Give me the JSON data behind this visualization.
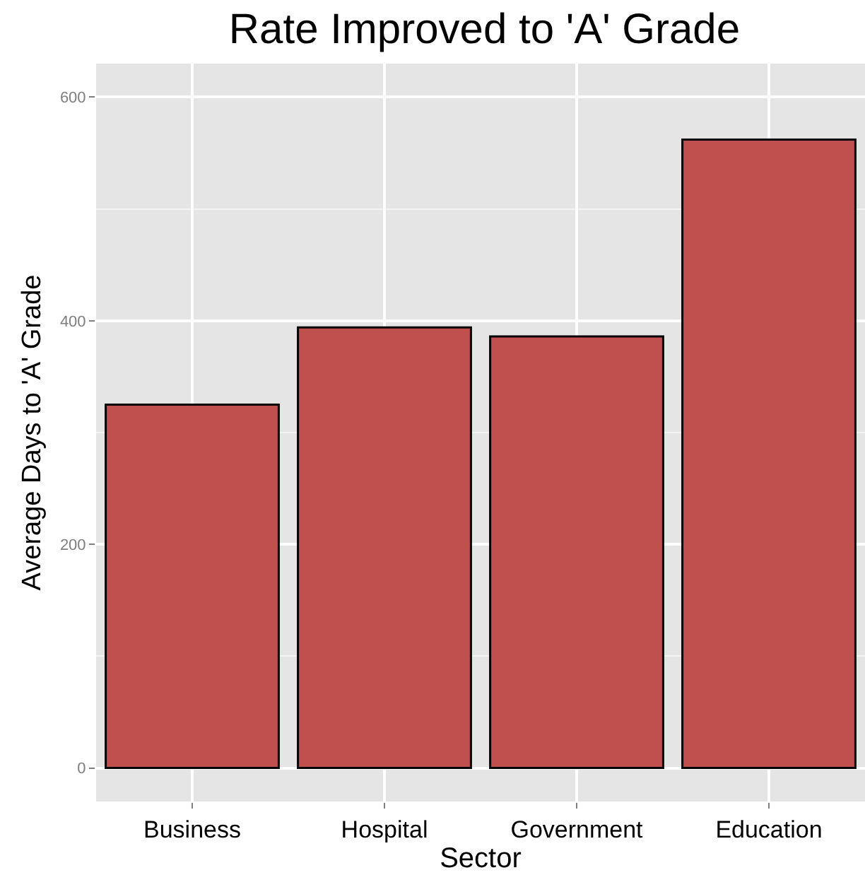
{
  "chart_data": {
    "type": "bar",
    "title": "Rate Improved to 'A' Grade",
    "xlabel": "Sector",
    "ylabel": "Average Days to 'A' Grade",
    "categories": [
      "Business",
      "Hospital",
      "Government",
      "Education"
    ],
    "values": [
      325,
      394,
      386,
      562
    ],
    "color": "#c0504d",
    "ylim": [
      -30,
      630
    ],
    "yticks": [
      0,
      200,
      400,
      600
    ],
    "grid": true
  }
}
